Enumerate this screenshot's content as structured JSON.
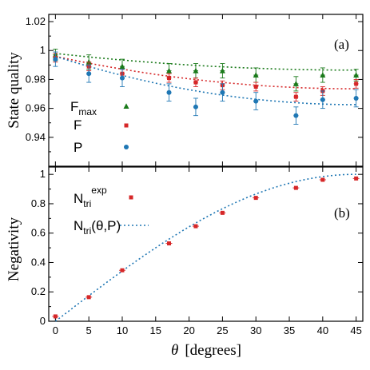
{
  "chart_data": [
    {
      "type": "scatter",
      "panel_label": "(a)",
      "ylabel": "State quality",
      "xlim": [
        -1,
        46
      ],
      "ylim": [
        0.92,
        1.025
      ],
      "y_ticks": [
        "0.94",
        "0.96",
        "0.98",
        "1",
        "1.02"
      ],
      "grid": false,
      "legend": "center-left",
      "series": [
        {
          "name_main": "F",
          "name_sub": "max",
          "color": "#1a7a1a",
          "marker": "triangle",
          "x": [
            0,
            5,
            10,
            17,
            21,
            25,
            30,
            36,
            40,
            45
          ],
          "y": [
            0.997,
            0.992,
            0.989,
            0.986,
            0.986,
            0.986,
            0.983,
            0.977,
            0.983,
            0.983
          ],
          "err": [
            0.004,
            0.005,
            0.005,
            0.005,
            0.005,
            0.005,
            0.005,
            0.005,
            0.005,
            0.004
          ],
          "fit": [
            0.998,
            5.7e-06
          ]
        },
        {
          "name_main": "F",
          "name_sub": "",
          "color": "#d62728",
          "marker": "square",
          "x": [
            0,
            5,
            10,
            17,
            21,
            25,
            30,
            36,
            40,
            45
          ],
          "y": [
            0.995,
            0.989,
            0.984,
            0.981,
            0.978,
            0.976,
            0.975,
            0.968,
            0.972,
            0.977
          ],
          "err": [
            0.003,
            0.003,
            0.003,
            0.003,
            0.003,
            0.003,
            0.003,
            0.003,
            0.003,
            0.003
          ],
          "fit": [
            0.996,
            1.11e-05
          ]
        },
        {
          "name_main": "P",
          "name_sub": "",
          "color": "#1f77b4",
          "marker": "circle",
          "x": [
            0,
            5,
            10,
            17,
            21,
            25,
            30,
            36,
            40,
            45
          ],
          "y": [
            0.994,
            0.984,
            0.981,
            0.971,
            0.961,
            0.971,
            0.965,
            0.955,
            0.966,
            0.967
          ],
          "err": [
            0.005,
            0.006,
            0.006,
            0.006,
            0.006,
            0.006,
            0.006,
            0.006,
            0.006,
            0.006
          ],
          "fit": [
            0.996,
            1.65e-05
          ]
        }
      ]
    },
    {
      "type": "scatter",
      "panel_label": "(b)",
      "ylabel": "Negativity",
      "xlabel_symbol": "θ",
      "xlabel_unit": "[degrees]",
      "xlim": [
        -1,
        46
      ],
      "ylim": [
        0,
        1.05
      ],
      "x_ticks": [
        "0",
        "5",
        "10",
        "15",
        "20",
        "25",
        "30",
        "35",
        "40",
        "45"
      ],
      "y_ticks": [
        "0",
        "0.2",
        "0.4",
        "0.6",
        "0.8",
        "1"
      ],
      "grid": false,
      "legend": "top-left",
      "series": [
        {
          "name_main": "N",
          "name_sub": "tri",
          "name_sup": "exp",
          "color": "#d62728",
          "marker": "square",
          "x": [
            0,
            5,
            10,
            17,
            21,
            25,
            30,
            36,
            40,
            45
          ],
          "y": [
            0.033,
            0.164,
            0.347,
            0.53,
            0.647,
            0.738,
            0.84,
            0.908,
            0.963,
            0.972
          ]
        },
        {
          "name_main": "N",
          "name_sub": "tri",
          "name_rest": "(θ,P)",
          "color": "#1f77b4",
          "line": "dotted",
          "curve": "sin(2θ)"
        }
      ]
    }
  ]
}
